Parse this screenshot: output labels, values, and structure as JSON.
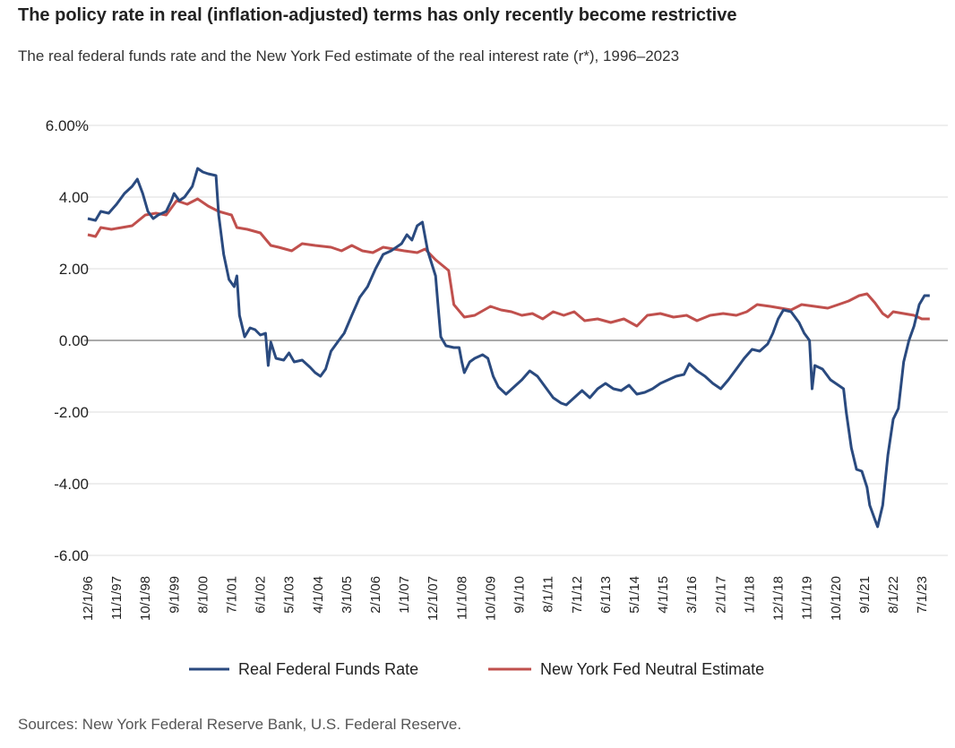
{
  "header": {
    "title": "The policy rate in real (inflation-adjusted) terms has only recently become restrictive",
    "subtitle": "The real federal funds rate and the New York Fed estimate of the real interest rate (r*), 1996–2023"
  },
  "footer": {
    "source": "Sources: New York Federal Reserve Bank, U.S. Federal Reserve."
  },
  "chart_data": {
    "type": "line",
    "ylim": [
      -6,
      6
    ],
    "xlim": [
      "1996-12-01",
      "2023-10-01"
    ],
    "grid": true,
    "legend_position": "bottom",
    "y_ticks": [
      {
        "value": 6,
        "label": "6.00%"
      },
      {
        "value": 4,
        "label": "4.00"
      },
      {
        "value": 2,
        "label": "2.00"
      },
      {
        "value": 0,
        "label": "0.00"
      },
      {
        "value": -2,
        "label": "-2.00"
      },
      {
        "value": -4,
        "label": "-4.00"
      },
      {
        "value": -6,
        "label": "-6.00"
      }
    ],
    "x_ticks": [
      {
        "date": "1996-12-01",
        "label": "12/1/96"
      },
      {
        "date": "1997-11-01",
        "label": "11/1/97"
      },
      {
        "date": "1998-10-01",
        "label": "10/1/98"
      },
      {
        "date": "1999-09-01",
        "label": "9/1/99"
      },
      {
        "date": "2000-08-01",
        "label": "8/1/00"
      },
      {
        "date": "2001-07-01",
        "label": "7/1/01"
      },
      {
        "date": "2002-06-01",
        "label": "6/1/02"
      },
      {
        "date": "2003-05-01",
        "label": "5/1/03"
      },
      {
        "date": "2004-04-01",
        "label": "4/1/04"
      },
      {
        "date": "2005-03-01",
        "label": "3/1/05"
      },
      {
        "date": "2006-02-01",
        "label": "2/1/06"
      },
      {
        "date": "2007-01-01",
        "label": "1/1/07"
      },
      {
        "date": "2007-12-01",
        "label": "12/1/07"
      },
      {
        "date": "2008-11-01",
        "label": "11/1/08"
      },
      {
        "date": "2009-10-01",
        "label": "10/1/09"
      },
      {
        "date": "2010-09-01",
        "label": "9/1/10"
      },
      {
        "date": "2011-08-01",
        "label": "8/1/11"
      },
      {
        "date": "2012-07-01",
        "label": "7/1/12"
      },
      {
        "date": "2013-06-01",
        "label": "6/1/13"
      },
      {
        "date": "2014-05-01",
        "label": "5/1/14"
      },
      {
        "date": "2015-04-01",
        "label": "4/1/15"
      },
      {
        "date": "2016-03-01",
        "label": "3/1/16"
      },
      {
        "date": "2017-02-01",
        "label": "2/1/17"
      },
      {
        "date": "2018-01-01",
        "label": "1/1/18"
      },
      {
        "date": "2018-12-01",
        "label": "12/1/18"
      },
      {
        "date": "2019-11-01",
        "label": "11/1/19"
      },
      {
        "date": "2020-10-01",
        "label": "10/1/20"
      },
      {
        "date": "2021-09-01",
        "label": "9/1/21"
      },
      {
        "date": "2022-08-01",
        "label": "8/1/22"
      },
      {
        "date": "2023-07-01",
        "label": "7/1/23"
      }
    ],
    "series": [
      {
        "name": "Real Federal Funds Rate",
        "color": "#2a4a7f",
        "points": [
          [
            "1996-12-01",
            3.4
          ],
          [
            "1997-03-01",
            3.35
          ],
          [
            "1997-05-01",
            3.6
          ],
          [
            "1997-08-01",
            3.55
          ],
          [
            "1997-11-01",
            3.8
          ],
          [
            "1998-02-01",
            4.1
          ],
          [
            "1998-05-01",
            4.3
          ],
          [
            "1998-07-01",
            4.5
          ],
          [
            "1998-09-01",
            4.1
          ],
          [
            "1998-11-01",
            3.6
          ],
          [
            "1999-01-01",
            3.4
          ],
          [
            "1999-03-01",
            3.5
          ],
          [
            "1999-06-01",
            3.6
          ],
          [
            "1999-08-01",
            3.9
          ],
          [
            "1999-09-01",
            4.1
          ],
          [
            "1999-11-01",
            3.9
          ],
          [
            "2000-01-01",
            4.0
          ],
          [
            "2000-04-01",
            4.3
          ],
          [
            "2000-06-01",
            4.8
          ],
          [
            "2000-08-01",
            4.7
          ],
          [
            "2000-10-01",
            4.65
          ],
          [
            "2001-01-01",
            4.6
          ],
          [
            "2001-02-01",
            3.5
          ],
          [
            "2001-04-01",
            2.4
          ],
          [
            "2001-06-01",
            1.7
          ],
          [
            "2001-08-01",
            1.5
          ],
          [
            "2001-09-01",
            1.8
          ],
          [
            "2001-10-01",
            0.7
          ],
          [
            "2001-12-01",
            0.1
          ],
          [
            "2002-02-01",
            0.35
          ],
          [
            "2002-04-01",
            0.3
          ],
          [
            "2002-06-01",
            0.15
          ],
          [
            "2002-08-01",
            0.2
          ],
          [
            "2002-09-01",
            -0.7
          ],
          [
            "2002-10-01",
            -0.05
          ],
          [
            "2002-12-01",
            -0.5
          ],
          [
            "2003-03-01",
            -0.55
          ],
          [
            "2003-05-01",
            -0.35
          ],
          [
            "2003-07-01",
            -0.6
          ],
          [
            "2003-10-01",
            -0.55
          ],
          [
            "2004-01-01",
            -0.75
          ],
          [
            "2004-03-01",
            -0.9
          ],
          [
            "2004-05-01",
            -1.0
          ],
          [
            "2004-07-01",
            -0.8
          ],
          [
            "2004-09-01",
            -0.3
          ],
          [
            "2004-12-01",
            0.0
          ],
          [
            "2005-02-01",
            0.2
          ],
          [
            "2005-05-01",
            0.7
          ],
          [
            "2005-08-01",
            1.2
          ],
          [
            "2005-11-01",
            1.5
          ],
          [
            "2006-02-01",
            2.0
          ],
          [
            "2006-05-01",
            2.4
          ],
          [
            "2006-08-01",
            2.5
          ],
          [
            "2006-10-01",
            2.6
          ],
          [
            "2006-12-01",
            2.7
          ],
          [
            "2007-02-01",
            2.95
          ],
          [
            "2007-04-01",
            2.8
          ],
          [
            "2007-06-01",
            3.2
          ],
          [
            "2007-08-01",
            3.3
          ],
          [
            "2007-10-01",
            2.5
          ],
          [
            "2008-01-01",
            1.8
          ],
          [
            "2008-02-01",
            0.9
          ],
          [
            "2008-03-01",
            0.1
          ],
          [
            "2008-05-01",
            -0.15
          ],
          [
            "2008-08-01",
            -0.2
          ],
          [
            "2008-10-01",
            -0.2
          ],
          [
            "2008-11-01",
            -0.6
          ],
          [
            "2008-12-01",
            -0.9
          ],
          [
            "2009-02-01",
            -0.6
          ],
          [
            "2009-04-01",
            -0.5
          ],
          [
            "2009-07-01",
            -0.4
          ],
          [
            "2009-09-01",
            -0.5
          ],
          [
            "2009-11-01",
            -1.0
          ],
          [
            "2010-01-01",
            -1.3
          ],
          [
            "2010-04-01",
            -1.5
          ],
          [
            "2010-07-01",
            -1.3
          ],
          [
            "2010-10-01",
            -1.1
          ],
          [
            "2011-01-01",
            -0.85
          ],
          [
            "2011-04-01",
            -1.0
          ],
          [
            "2011-07-01",
            -1.3
          ],
          [
            "2011-10-01",
            -1.6
          ],
          [
            "2012-01-01",
            -1.75
          ],
          [
            "2012-03-01",
            -1.8
          ],
          [
            "2012-06-01",
            -1.6
          ],
          [
            "2012-09-01",
            -1.4
          ],
          [
            "2012-12-01",
            -1.6
          ],
          [
            "2013-03-01",
            -1.35
          ],
          [
            "2013-06-01",
            -1.2
          ],
          [
            "2013-09-01",
            -1.35
          ],
          [
            "2013-12-01",
            -1.4
          ],
          [
            "2014-03-01",
            -1.25
          ],
          [
            "2014-06-01",
            -1.5
          ],
          [
            "2014-09-01",
            -1.45
          ],
          [
            "2014-12-01",
            -1.35
          ],
          [
            "2015-03-01",
            -1.2
          ],
          [
            "2015-06-01",
            -1.1
          ],
          [
            "2015-09-01",
            -1.0
          ],
          [
            "2015-12-01",
            -0.95
          ],
          [
            "2016-02-01",
            -0.65
          ],
          [
            "2016-05-01",
            -0.85
          ],
          [
            "2016-08-01",
            -1.0
          ],
          [
            "2016-11-01",
            -1.2
          ],
          [
            "2017-02-01",
            -1.35
          ],
          [
            "2017-05-01",
            -1.1
          ],
          [
            "2017-08-01",
            -0.8
          ],
          [
            "2017-11-01",
            -0.5
          ],
          [
            "2018-02-01",
            -0.25
          ],
          [
            "2018-05-01",
            -0.3
          ],
          [
            "2018-08-01",
            -0.1
          ],
          [
            "2018-10-01",
            0.2
          ],
          [
            "2018-12-01",
            0.6
          ],
          [
            "2019-02-01",
            0.85
          ],
          [
            "2019-05-01",
            0.8
          ],
          [
            "2019-08-01",
            0.5
          ],
          [
            "2019-10-01",
            0.2
          ],
          [
            "2019-12-01",
            0.0
          ],
          [
            "2020-01-01",
            -1.35
          ],
          [
            "2020-02-01",
            -0.7
          ],
          [
            "2020-05-01",
            -0.8
          ],
          [
            "2020-08-01",
            -1.1
          ],
          [
            "2020-11-01",
            -1.25
          ],
          [
            "2021-01-01",
            -1.35
          ],
          [
            "2021-02-01",
            -2.0
          ],
          [
            "2021-04-01",
            -3.0
          ],
          [
            "2021-06-01",
            -3.6
          ],
          [
            "2021-08-01",
            -3.65
          ],
          [
            "2021-10-01",
            -4.1
          ],
          [
            "2021-11-01",
            -4.6
          ],
          [
            "2022-01-01",
            -5.0
          ],
          [
            "2022-02-01",
            -5.2
          ],
          [
            "2022-04-01",
            -4.6
          ],
          [
            "2022-06-01",
            -3.2
          ],
          [
            "2022-08-01",
            -2.2
          ],
          [
            "2022-10-01",
            -1.9
          ],
          [
            "2022-12-01",
            -0.6
          ],
          [
            "2023-02-01",
            0.0
          ],
          [
            "2023-04-01",
            0.4
          ],
          [
            "2023-06-01",
            1.0
          ],
          [
            "2023-08-01",
            1.25
          ],
          [
            "2023-10-01",
            1.25
          ]
        ]
      },
      {
        "name": "New York Fed Neutral Estimate",
        "color": "#c0504d",
        "points": [
          [
            "1996-12-01",
            2.95
          ],
          [
            "1997-03-01",
            2.9
          ],
          [
            "1997-05-01",
            3.15
          ],
          [
            "1997-09-01",
            3.1
          ],
          [
            "1998-01-01",
            3.15
          ],
          [
            "1998-05-01",
            3.2
          ],
          [
            "1998-10-01",
            3.5
          ],
          [
            "1999-02-01",
            3.55
          ],
          [
            "1999-06-01",
            3.5
          ],
          [
            "1999-10-01",
            3.9
          ],
          [
            "2000-02-01",
            3.8
          ],
          [
            "2000-06-01",
            3.95
          ],
          [
            "2000-10-01",
            3.75
          ],
          [
            "2001-02-01",
            3.6
          ],
          [
            "2001-07-01",
            3.5
          ],
          [
            "2001-09-01",
            3.15
          ],
          [
            "2002-01-01",
            3.1
          ],
          [
            "2002-06-01",
            3.0
          ],
          [
            "2002-10-01",
            2.65
          ],
          [
            "2003-01-01",
            2.6
          ],
          [
            "2003-06-01",
            2.5
          ],
          [
            "2003-10-01",
            2.7
          ],
          [
            "2004-03-01",
            2.65
          ],
          [
            "2004-09-01",
            2.6
          ],
          [
            "2005-01-01",
            2.5
          ],
          [
            "2005-05-01",
            2.65
          ],
          [
            "2005-09-01",
            2.5
          ],
          [
            "2006-01-01",
            2.45
          ],
          [
            "2006-05-01",
            2.6
          ],
          [
            "2006-09-01",
            2.55
          ],
          [
            "2007-01-01",
            2.5
          ],
          [
            "2007-06-01",
            2.45
          ],
          [
            "2007-09-01",
            2.55
          ],
          [
            "2008-01-01",
            2.25
          ],
          [
            "2008-06-01",
            1.95
          ],
          [
            "2008-08-01",
            1.0
          ],
          [
            "2008-12-01",
            0.65
          ],
          [
            "2009-04-01",
            0.7
          ],
          [
            "2009-10-01",
            0.95
          ],
          [
            "2010-02-01",
            0.85
          ],
          [
            "2010-06-01",
            0.8
          ],
          [
            "2010-10-01",
            0.7
          ],
          [
            "2011-02-01",
            0.75
          ],
          [
            "2011-06-01",
            0.6
          ],
          [
            "2011-10-01",
            0.8
          ],
          [
            "2012-02-01",
            0.7
          ],
          [
            "2012-06-01",
            0.8
          ],
          [
            "2012-10-01",
            0.55
          ],
          [
            "2013-03-01",
            0.6
          ],
          [
            "2013-08-01",
            0.5
          ],
          [
            "2014-01-01",
            0.6
          ],
          [
            "2014-06-01",
            0.4
          ],
          [
            "2014-10-01",
            0.7
          ],
          [
            "2015-03-01",
            0.75
          ],
          [
            "2015-08-01",
            0.65
          ],
          [
            "2016-01-01",
            0.7
          ],
          [
            "2016-05-01",
            0.55
          ],
          [
            "2016-10-01",
            0.7
          ],
          [
            "2017-03-01",
            0.75
          ],
          [
            "2017-08-01",
            0.7
          ],
          [
            "2017-12-01",
            0.8
          ],
          [
            "2018-04-01",
            1.0
          ],
          [
            "2018-09-01",
            0.95
          ],
          [
            "2019-01-01",
            0.9
          ],
          [
            "2019-05-01",
            0.85
          ],
          [
            "2019-09-01",
            1.0
          ],
          [
            "2020-02-01",
            0.95
          ],
          [
            "2020-07-01",
            0.9
          ],
          [
            "2020-11-01",
            1.0
          ],
          [
            "2021-03-01",
            1.1
          ],
          [
            "2021-07-01",
            1.25
          ],
          [
            "2021-10-01",
            1.3
          ],
          [
            "2022-01-01",
            1.05
          ],
          [
            "2022-04-01",
            0.75
          ],
          [
            "2022-06-01",
            0.65
          ],
          [
            "2022-08-01",
            0.8
          ],
          [
            "2022-12-01",
            0.75
          ],
          [
            "2023-04-01",
            0.7
          ],
          [
            "2023-07-01",
            0.6
          ],
          [
            "2023-10-01",
            0.6
          ]
        ]
      }
    ]
  }
}
